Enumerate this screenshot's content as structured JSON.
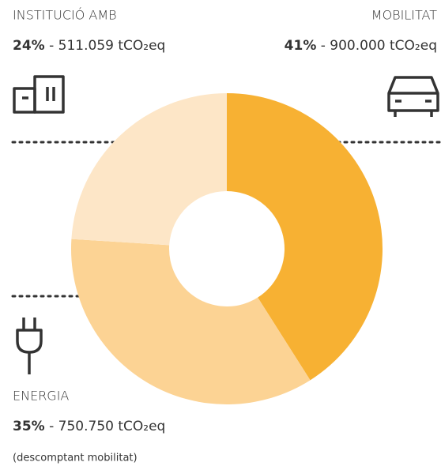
{
  "chart_data": {
    "type": "pie",
    "categories": [
      "MOBILITAT",
      "ENERGIA",
      "INSTITUCIÓ AMB"
    ],
    "values": [
      41,
      35,
      24
    ],
    "value_labels": [
      "41%",
      "35%",
      "24%"
    ],
    "details": [
      "- 900.000 tCO₂eq",
      "- 750.750 tCO₂eq",
      "- 511.059 tCO₂eq"
    ],
    "colors": [
      "#f7b133",
      "#fcd394",
      "#fde6c7"
    ],
    "note": "(descomptant mobilitat)",
    "donut": true
  }
}
